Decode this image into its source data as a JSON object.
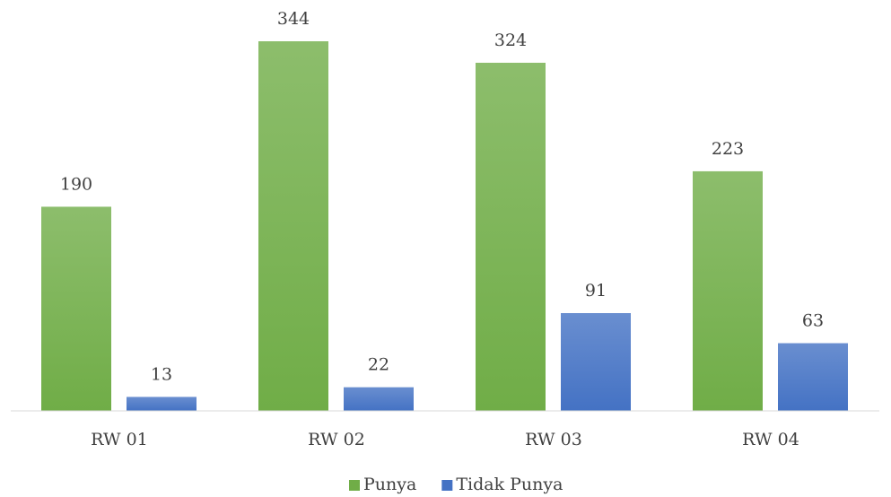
{
  "chart_data": {
    "type": "bar",
    "categories": [
      "RW 01",
      "RW 02",
      "RW 03",
      "RW 04"
    ],
    "series": [
      {
        "name": "Punya",
        "color": "#70ad47",
        "values": [
          190,
          344,
          324,
          223
        ]
      },
      {
        "name": "Tidak Punya",
        "color": "#4472c4",
        "values": [
          13,
          22,
          91,
          63
        ]
      }
    ],
    "legend": "bottom"
  }
}
